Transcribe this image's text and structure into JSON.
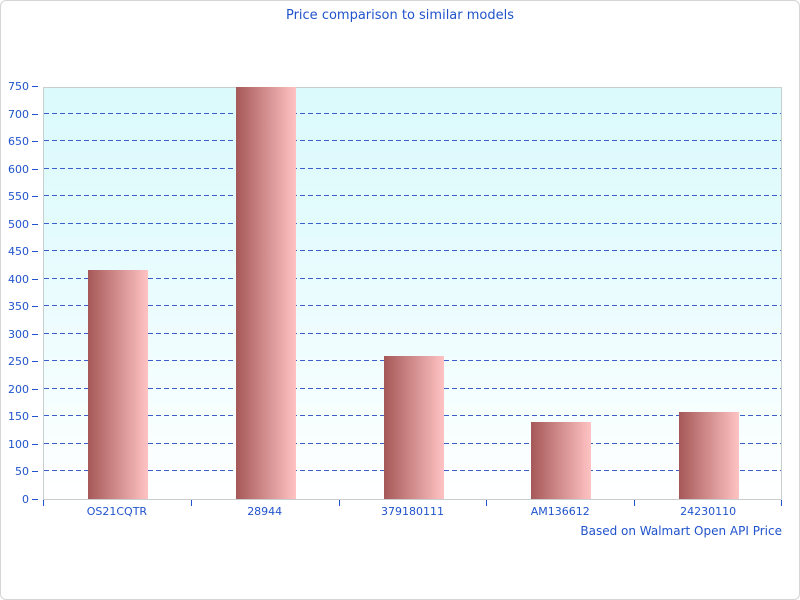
{
  "page": {
    "title": "Price comparison to similar models",
    "footnote": "Based on Walmart Open API Price"
  },
  "chart_data": {
    "type": "bar",
    "title": "Price comparison to similar models",
    "categories": [
      "OS21CQTR",
      "28944",
      "379180111",
      "AM136612",
      "24230110"
    ],
    "values": [
      415,
      748,
      260,
      140,
      158
    ],
    "xlabel": "",
    "ylabel": "",
    "ylim": [
      0,
      750
    ],
    "ytick_step": 50,
    "grid": "horizontal-dashed",
    "legend": "none",
    "annotation": "Based on Walmart Open API Price",
    "colors": {
      "bar_gradient_left": "#a65858",
      "bar_gradient_right": "#ffc3c3",
      "plot_bg_top": "#dbfafc",
      "plot_bg_bottom": "#ffffff",
      "gridline": "#3a5fc8",
      "text": "#2053cc",
      "plot_border": "#c8cdce",
      "page_border": "#d5d5d5"
    }
  }
}
